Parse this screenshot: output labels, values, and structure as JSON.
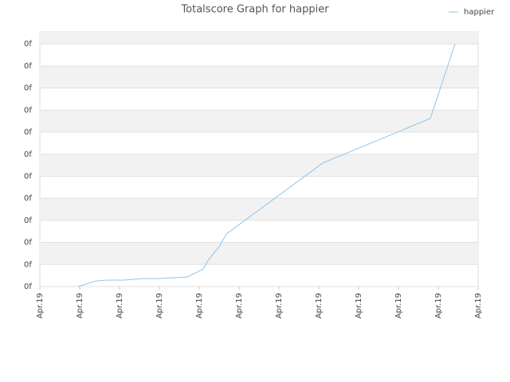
{
  "chart_data": {
    "type": "line",
    "title": "Totalscore Graph for happier",
    "x": [
      0.96,
      1.4,
      1.7,
      2.1,
      2.6,
      3.0,
      3.4,
      3.7,
      4.1,
      4.24,
      4.5,
      4.68,
      7.1,
      9.8,
      10.42
    ],
    "series": [
      {
        "name": "happier",
        "color": "#8ec5ec",
        "values": [
          0,
          0.25,
          0.29,
          0.29,
          0.36,
          0.36,
          0.4,
          0.43,
          0.79,
          1.23,
          1.8,
          2.38,
          5.6,
          7.62,
          11.0
        ]
      }
    ],
    "xlim": [
      0,
      11
    ],
    "xticks": [
      {
        "value": 0,
        "label": "Apr.19"
      },
      {
        "value": 1,
        "label": "Apr.19"
      },
      {
        "value": 2,
        "label": "Apr.19"
      },
      {
        "value": 3,
        "label": "Apr.19"
      },
      {
        "value": 4,
        "label": "Apr.19"
      },
      {
        "value": 5,
        "label": "Apr.19"
      },
      {
        "value": 6,
        "label": "Apr.19"
      },
      {
        "value": 7,
        "label": "Apr.19"
      },
      {
        "value": 8,
        "label": "Apr.19"
      },
      {
        "value": 9,
        "label": "Apr.19"
      },
      {
        "value": 10,
        "label": "Apr.19"
      },
      {
        "value": 11,
        "label": "Apr.19"
      }
    ],
    "ylim": [
      0,
      11.55
    ],
    "yticks": [
      {
        "value": 0,
        "label": "0f"
      },
      {
        "value": 1,
        "label": "0f"
      },
      {
        "value": 2,
        "label": "0f"
      },
      {
        "value": 3,
        "label": "0f"
      },
      {
        "value": 4,
        "label": "0f"
      },
      {
        "value": 5,
        "label": "0f"
      },
      {
        "value": 6,
        "label": "0f"
      },
      {
        "value": 7,
        "label": "0f"
      },
      {
        "value": 8,
        "label": "0f"
      },
      {
        "value": 9,
        "label": "0f"
      },
      {
        "value": 10,
        "label": "0f"
      },
      {
        "value": 11,
        "label": "0f"
      }
    ],
    "grid": true,
    "legend": "top-right"
  }
}
